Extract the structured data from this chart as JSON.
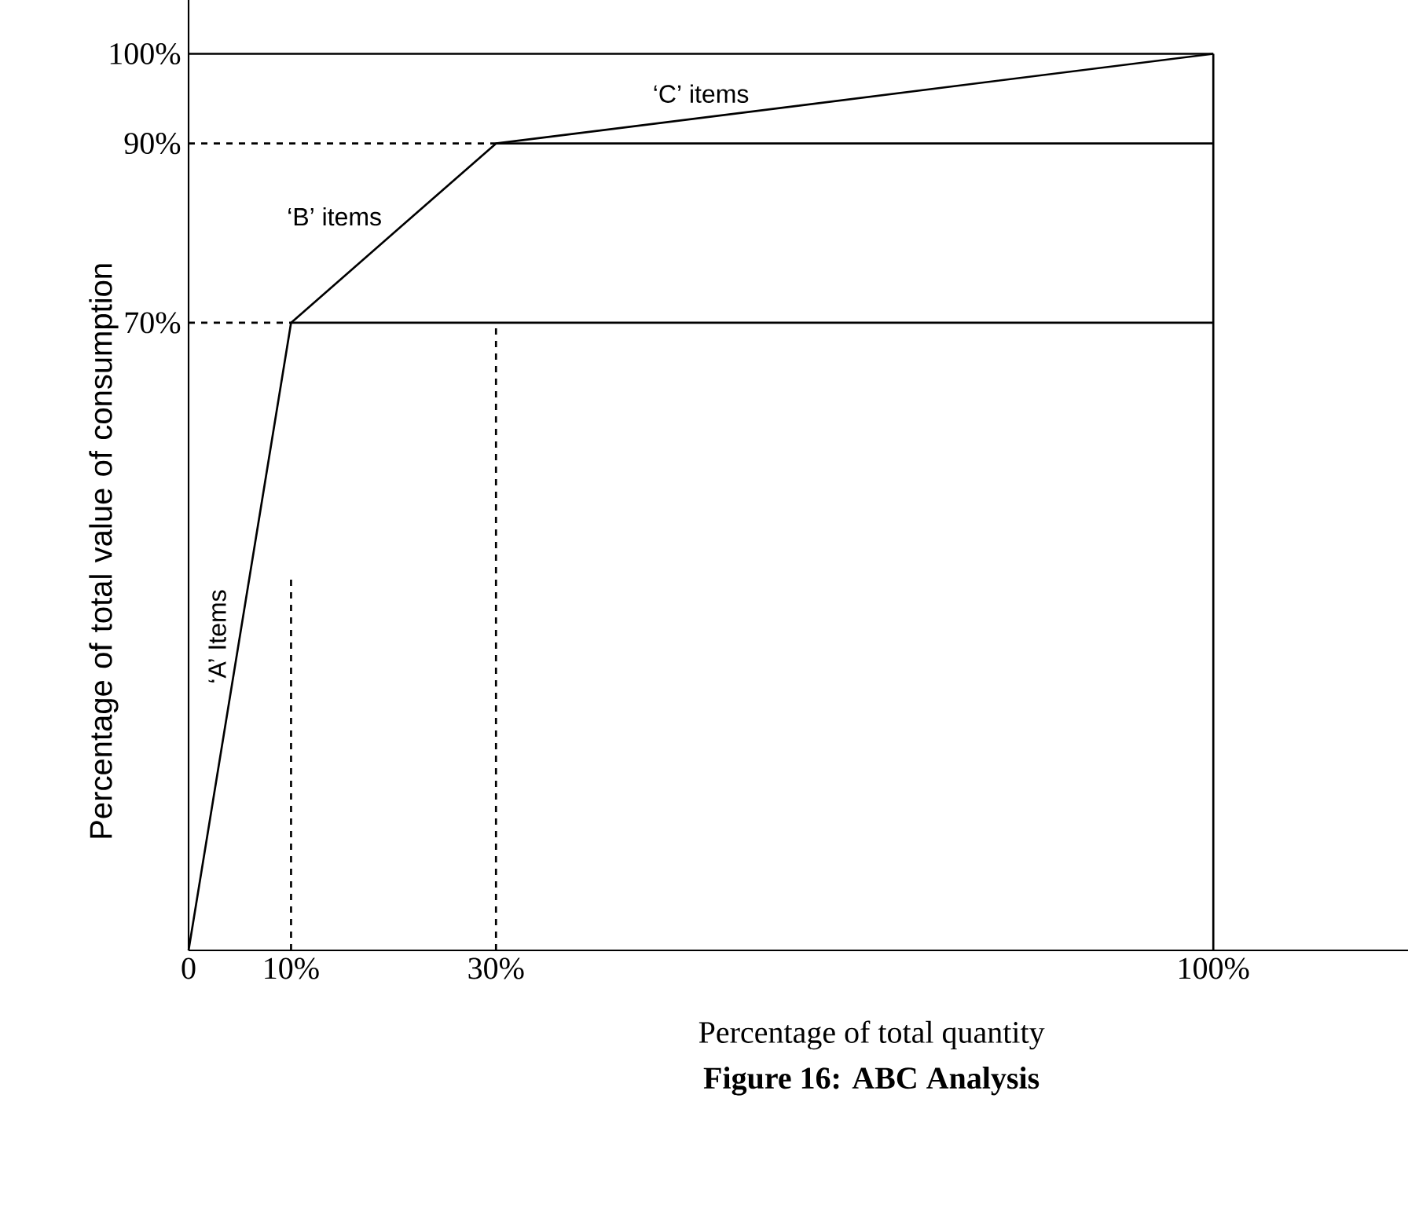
{
  "chart_data": {
    "type": "line",
    "xlabel": "Percentage of total quantity",
    "ylabel": "Percentage of total value of consumption",
    "xlim": [
      0,
      119
    ],
    "ylim": [
      0,
      106
    ],
    "xticks": [
      {
        "value": 0,
        "label": "0"
      },
      {
        "value": 10,
        "label": "10%"
      },
      {
        "value": 30,
        "label": "30%"
      },
      {
        "value": 100,
        "label": "100%"
      }
    ],
    "yticks": [
      {
        "value": 70,
        "label": "70%"
      },
      {
        "value": 90,
        "label": "90%"
      },
      {
        "value": 100,
        "label": "100%"
      }
    ],
    "series": [
      {
        "color": "#000000",
        "x": [
          0,
          10,
          30,
          100
        ],
        "values": [
          0,
          70,
          90,
          100
        ]
      },
      {
        "color": "#000000",
        "x": [
          10,
          100
        ],
        "values": [
          70,
          70
        ]
      },
      {
        "color": "#000000",
        "x": [
          30,
          100
        ],
        "values": [
          90,
          90
        ]
      },
      {
        "color": "#000000",
        "x": [
          0,
          100
        ],
        "values": [
          100,
          100
        ]
      },
      {
        "color": "#000000",
        "x": [
          100,
          100
        ],
        "values": [
          0,
          100
        ]
      },
      {
        "color": "#000000",
        "x": [
          0,
          10
        ],
        "values": [
          70,
          70
        ],
        "line_style": "dashed"
      },
      {
        "color": "#000000",
        "x": [
          0,
          30
        ],
        "values": [
          90,
          90
        ],
        "line_style": "dashed"
      },
      {
        "color": "#000000",
        "x": [
          30,
          30
        ],
        "values": [
          0,
          70
        ],
        "line_style": "dashed"
      },
      {
        "color": "#000000",
        "x": [
          10,
          10
        ],
        "values": [
          0,
          42
        ],
        "line_style": "dashed"
      }
    ],
    "annotations": [
      {
        "text": "‘C’ items",
        "x": 50,
        "y": 93
      },
      {
        "text": "‘B’ items",
        "x": 20,
        "y": 80
      },
      {
        "text": "‘A’ Items",
        "x": 5,
        "y": 35
      },
      "Figure 16: ABC Analysis"
    ],
    "marker": "none",
    "line_style": "solid"
  }
}
